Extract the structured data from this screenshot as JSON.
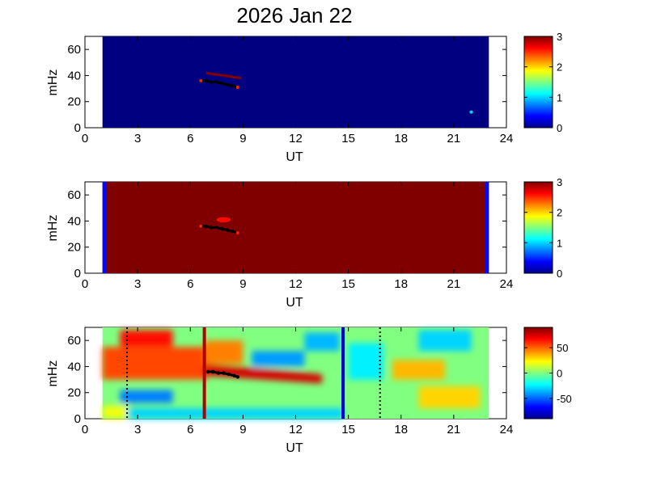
{
  "chart_data": [
    {
      "type": "heatmap",
      "title": "2026 Jan 22",
      "xlabel": "UT",
      "ylabel": "mHz",
      "xlim": [
        0,
        24
      ],
      "ylim": [
        0,
        70
      ],
      "xticks": [
        "0",
        "3",
        "6",
        "9",
        "12",
        "15",
        "18",
        "21",
        "24"
      ],
      "yticks": [
        "0",
        "20",
        "40",
        "60"
      ],
      "data_coverage_ut": [
        1,
        23
      ],
      "background_value": 0,
      "colorbar": {
        "range": [
          0,
          3
        ],
        "ticks": [
          "0",
          "1",
          "2",
          "3"
        ]
      },
      "regions": [
        {
          "value": 3,
          "ut": [
            6.9,
            8.9
          ],
          "mhz_start": [
            43,
            41
          ],
          "mhz_end": [
            39,
            37
          ],
          "note": "red band"
        },
        {
          "value": 1,
          "ut": [
            21.9,
            22.1
          ],
          "mhz": [
            11,
            13
          ]
        }
      ],
      "track": {
        "ut": [
          6.6,
          6.9,
          7.2,
          7.5,
          7.8,
          8.1,
          8.4,
          8.7
        ],
        "mhz": [
          36,
          36,
          35,
          35,
          34,
          33,
          32,
          31
        ]
      }
    },
    {
      "type": "heatmap",
      "xlabel": "UT",
      "ylabel": "mHz",
      "xlim": [
        0,
        24
      ],
      "ylim": [
        0,
        70
      ],
      "xticks": [
        "0",
        "3",
        "6",
        "9",
        "12",
        "15",
        "18",
        "21",
        "24"
      ],
      "yticks": [
        "0",
        "20",
        "40",
        "60"
      ],
      "data_coverage_ut": [
        1,
        23
      ],
      "background_value": 3,
      "colorbar": {
        "range": [
          0,
          3
        ],
        "ticks": [
          "0",
          "1",
          "2",
          "3"
        ]
      },
      "edge_columns": [
        {
          "ut": [
            1.0,
            1.2
          ],
          "value": 0.4
        },
        {
          "ut": [
            22.8,
            23.0
          ],
          "value": 0.4
        }
      ],
      "regions": [
        {
          "value": 2.6,
          "ut": [
            7.5,
            8.3
          ],
          "mhz": [
            39,
            43
          ]
        }
      ],
      "track": {
        "ut": [
          6.6,
          6.9,
          7.2,
          7.5,
          7.8,
          8.1,
          8.4,
          8.7
        ],
        "mhz": [
          36,
          36,
          35,
          35,
          34,
          33,
          32,
          31
        ]
      }
    },
    {
      "type": "heatmap",
      "xlabel": "UT",
      "ylabel": "mHz",
      "xlim": [
        0,
        24
      ],
      "ylim": [
        0,
        70
      ],
      "xticks": [
        "0",
        "3",
        "6",
        "9",
        "12",
        "15",
        "18",
        "21",
        "24"
      ],
      "yticks": [
        "0",
        "20",
        "40",
        "60"
      ],
      "data_coverage_ut": [
        1,
        23
      ],
      "colorbar": {
        "range": [
          -90,
          90
        ],
        "ticks": [
          "50",
          "0",
          "-50"
        ],
        "tick_values": [
          50,
          0,
          -50
        ]
      },
      "vertical_lines": [
        {
          "ut": 2.4,
          "style": "dotted",
          "color": "#000000"
        },
        {
          "ut": 6.8,
          "style": "solid",
          "color": "#b00000"
        },
        {
          "ut": 14.7,
          "style": "solid",
          "color": "#0000d0"
        },
        {
          "ut": 16.8,
          "style": "dotted",
          "color": "#000000"
        }
      ],
      "features": [
        {
          "value": 55,
          "ut": [
            1.0,
            7.0
          ],
          "mhz": [
            30,
            55
          ]
        },
        {
          "value": 65,
          "ut": [
            2.0,
            5.0
          ],
          "mhz": [
            55,
            68
          ]
        },
        {
          "value": 75,
          "ut": [
            6.8,
            13.5
          ],
          "mhz_start": [
            33,
            42
          ],
          "mhz_end": [
            27,
            34
          ]
        },
        {
          "value": 45,
          "ut": [
            6.8,
            9.0
          ],
          "mhz": [
            42,
            60
          ]
        },
        {
          "value": -30,
          "ut": [
            1.0,
            14.7
          ],
          "mhz": [
            0,
            8
          ]
        },
        {
          "value": -45,
          "ut": [
            2.0,
            5.0
          ],
          "mhz": [
            12,
            22
          ]
        },
        {
          "value": -40,
          "ut": [
            9.5,
            12.5
          ],
          "mhz": [
            40,
            52
          ]
        },
        {
          "value": -35,
          "ut": [
            12.5,
            14.5
          ],
          "mhz": [
            52,
            66
          ]
        },
        {
          "value": -25,
          "ut": [
            15.0,
            17.0
          ],
          "mhz": [
            30,
            58
          ]
        },
        {
          "value": 35,
          "ut": [
            17.5,
            20.5
          ],
          "mhz": [
            30,
            45
          ]
        },
        {
          "value": -30,
          "ut": [
            19.0,
            22.0
          ],
          "mhz": [
            52,
            68
          ]
        },
        {
          "value": 30,
          "ut": [
            19.0,
            22.5
          ],
          "mhz": [
            8,
            25
          ]
        },
        {
          "value": 20,
          "ut": [
            1.0,
            2.4
          ],
          "mhz": [
            0,
            10
          ]
        }
      ],
      "track": {
        "ut": [
          7.0,
          7.3,
          7.6,
          7.9,
          8.2,
          8.5,
          8.7
        ],
        "mhz": [
          36,
          36,
          35,
          35,
          34,
          33,
          32
        ]
      }
    }
  ]
}
